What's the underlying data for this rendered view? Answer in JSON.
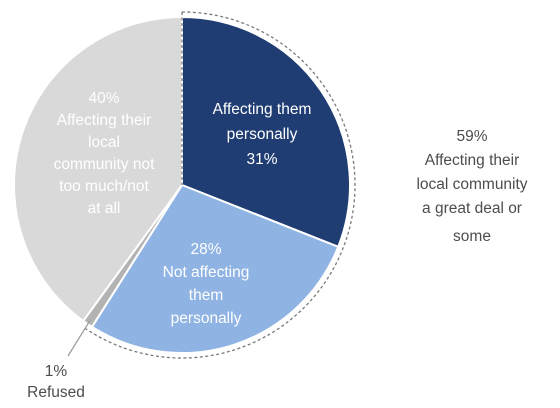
{
  "chart_data": {
    "type": "pie",
    "title": "",
    "slices": [
      {
        "key": "personal",
        "label": "Affecting them personally",
        "value": 31,
        "pct_label": "31%",
        "color": "#1f3d73"
      },
      {
        "key": "not_personal",
        "label": "Not affecting them personally",
        "value": 28,
        "pct_label": "28%",
        "color": "#8fb3e3"
      },
      {
        "key": "refused",
        "label": "Refused",
        "value": 1,
        "pct_label": "1%",
        "color": "#b3b3b3"
      },
      {
        "key": "not_local",
        "label": "Affecting their local community not too much/not at all",
        "value": 40,
        "pct_label": "40%",
        "color": "#d9d9d9"
      }
    ],
    "group_annotation": {
      "pct_label": "59%",
      "lines": [
        "Affecting their",
        "local community",
        "a great deal or",
        "some"
      ]
    },
    "label_lines": {
      "personal": [
        "Affecting them",
        "personally",
        "31%"
      ],
      "not_personal": [
        "28%",
        "Not affecting",
        "them",
        "personally"
      ],
      "not_local": [
        "40%",
        "Affecting their",
        "local",
        "community not",
        "too much/not",
        "at all"
      ],
      "refused": [
        "1%",
        "Refused"
      ]
    }
  }
}
